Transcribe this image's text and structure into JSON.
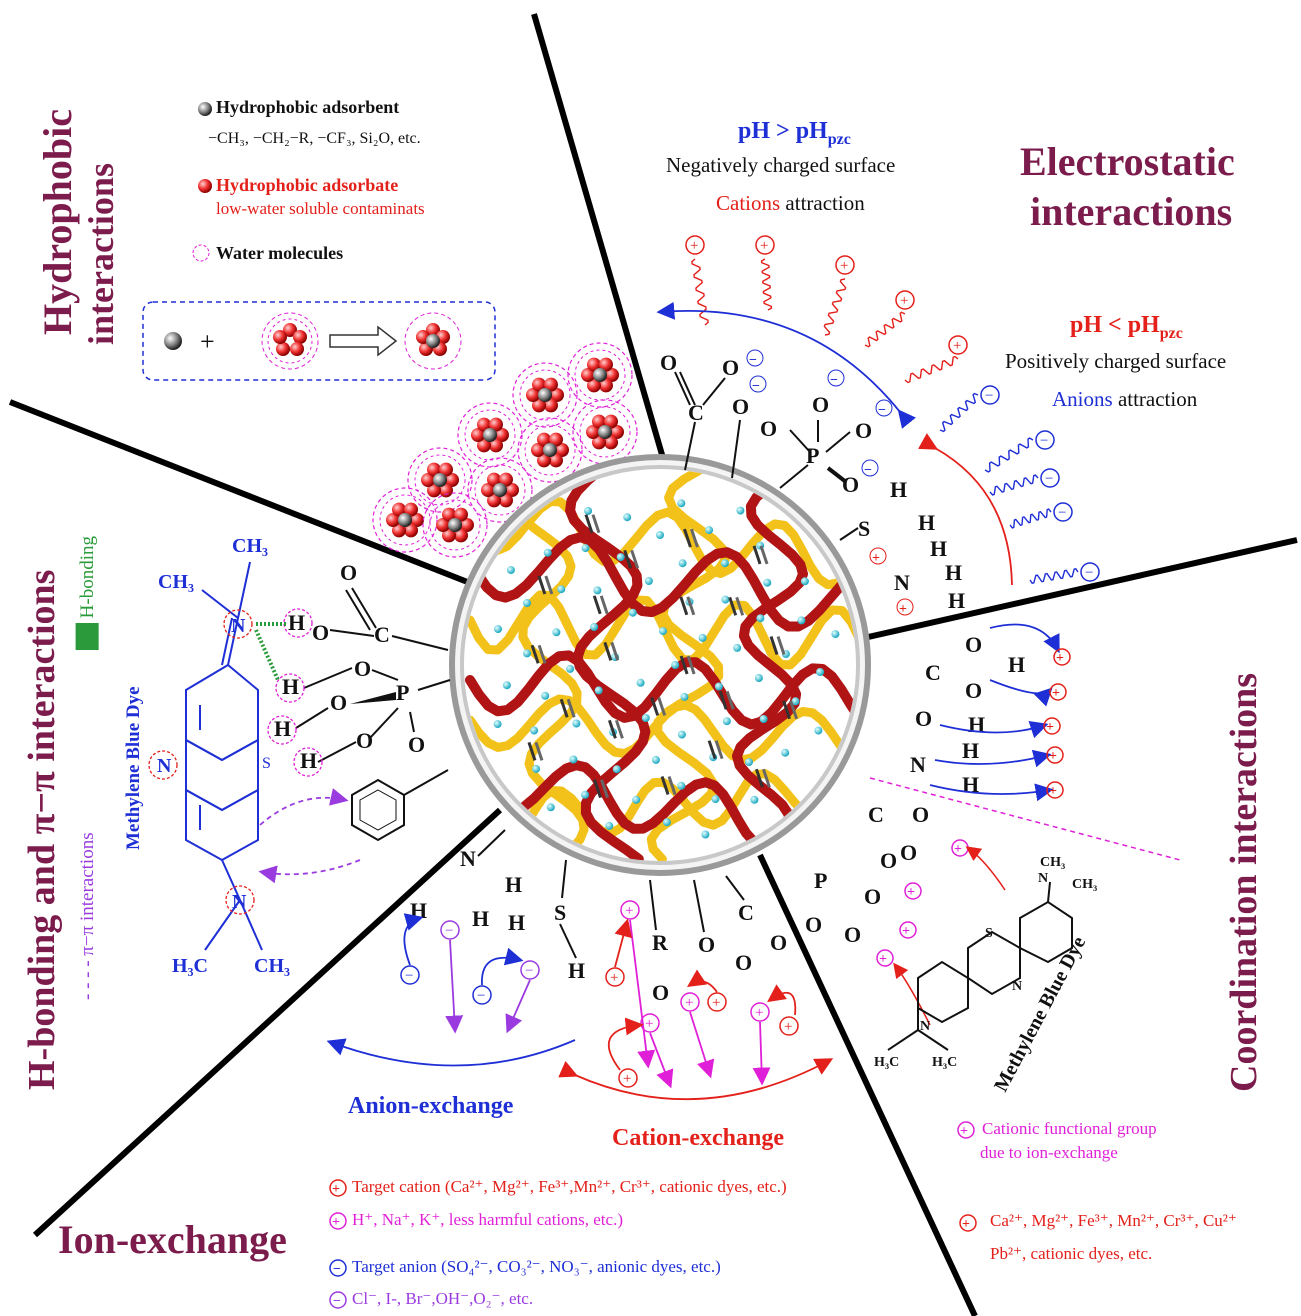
{
  "titles": {
    "hydrophobic_line1": "Hydrophobic",
    "hydrophobic_line2": "interactions",
    "electrostatic_line1": "Electrostatic",
    "electrostatic_line2": "interactions",
    "coordination": "Coordination interactions",
    "hbonding": "H-bonding and π−π interactions",
    "ion_exchange": "Ion-exchange"
  },
  "hydrophobic_legend": {
    "adsorbent_label": "Hydrophobic adsorbent",
    "adsorbent_examples": "−CH₃, −CH₂−R, −CF₃, Si₂O, etc.",
    "adsorbate_label": "Hydrophobic adsorbate",
    "adsorbate_desc": "low-water soluble contaminats",
    "water_label": "Water molecules",
    "plus_sign": "+"
  },
  "electrostatic": {
    "high_ph": "pH > pH",
    "high_ph_sub": "pzc",
    "negative_surface": "Negatively charged surface",
    "cations_word": "Cations",
    "attraction_word": " attraction",
    "low_ph": "pH < pH",
    "low_ph_sub": "pzc",
    "positive_surface": "Positively charged surface",
    "anions_word": "Anions",
    "anions_attraction": " attraction"
  },
  "hbond_legend": {
    "h_bonding": "H-bonding",
    "pi_interactions": "π−π interactions",
    "dye_name": "Methylene Blue Dye"
  },
  "coordination_legend": {
    "dye_name": "Methylene Blue Dye",
    "cationic_group_line1": "Cationic functional group",
    "cationic_group_line2": "due to ion-exchange",
    "target_ions_line1": "Ca²⁺, Mg²⁺, Fe³⁺, Mn²⁺, Cr³⁺, Cu²⁺",
    "target_ions_line2": "Pb²⁺, cationic dyes, etc."
  },
  "ion_exchange": {
    "anion_exchange": "Anion-exchange",
    "cation_exchange": "Cation-exchange",
    "target_cation": "Target cation (Ca²⁺, Mg²⁺, Fe³⁺,Mn²⁺, Cr³⁺, cationic dyes, etc.)",
    "less_harmful": "H⁺, Na⁺, K⁺, less harmful cations, etc.)",
    "target_anion": "Target anion (SO₄²⁻, CO₃²⁻, NO₃⁻, anionic dyes, etc.)",
    "common_anions": "Cl⁻, I-, Br⁻,OH⁻,O₂⁻, etc."
  },
  "chem_labels": {
    "ch3": "CH₃",
    "h3c": "H₃C",
    "n": "N",
    "s": "S",
    "h": "H",
    "o": "O",
    "c": "C",
    "p": "P",
    "r": "R"
  },
  "colors": {
    "title": "#7b1c4c",
    "blue": "#1f2fd6",
    "red": "#e4201a",
    "magenta": "#e020d8",
    "green": "#2a9a3a",
    "purple": "#9a3be0",
    "polymer_red": "#b01414",
    "polymer_yellow": "#f2c21a"
  }
}
